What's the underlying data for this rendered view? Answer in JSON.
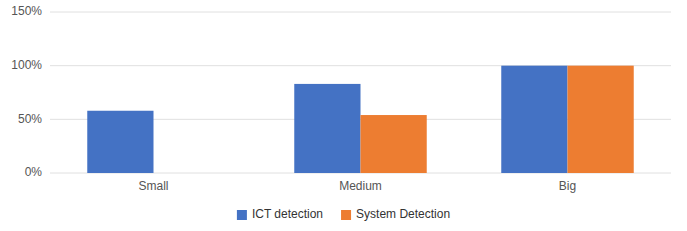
{
  "chart_data": {
    "type": "bar",
    "categories": [
      "Small",
      "Medium",
      "Big"
    ],
    "series": [
      {
        "name": "ICT detection",
        "color": "#4472C4",
        "values": [
          0.58,
          0.83,
          1.0
        ]
      },
      {
        "name": "System Detection",
        "color": "#ED7D31",
        "values": [
          0.0,
          0.54,
          1.0
        ]
      }
    ],
    "ylim": [
      0,
      1.5
    ],
    "yticks": [
      {
        "value": 0.0,
        "label": "0%"
      },
      {
        "value": 0.5,
        "label": "50%"
      },
      {
        "value": 1.0,
        "label": "100%"
      },
      {
        "value": 1.5,
        "label": "150%"
      }
    ],
    "grid": true,
    "legend": "bottom"
  }
}
